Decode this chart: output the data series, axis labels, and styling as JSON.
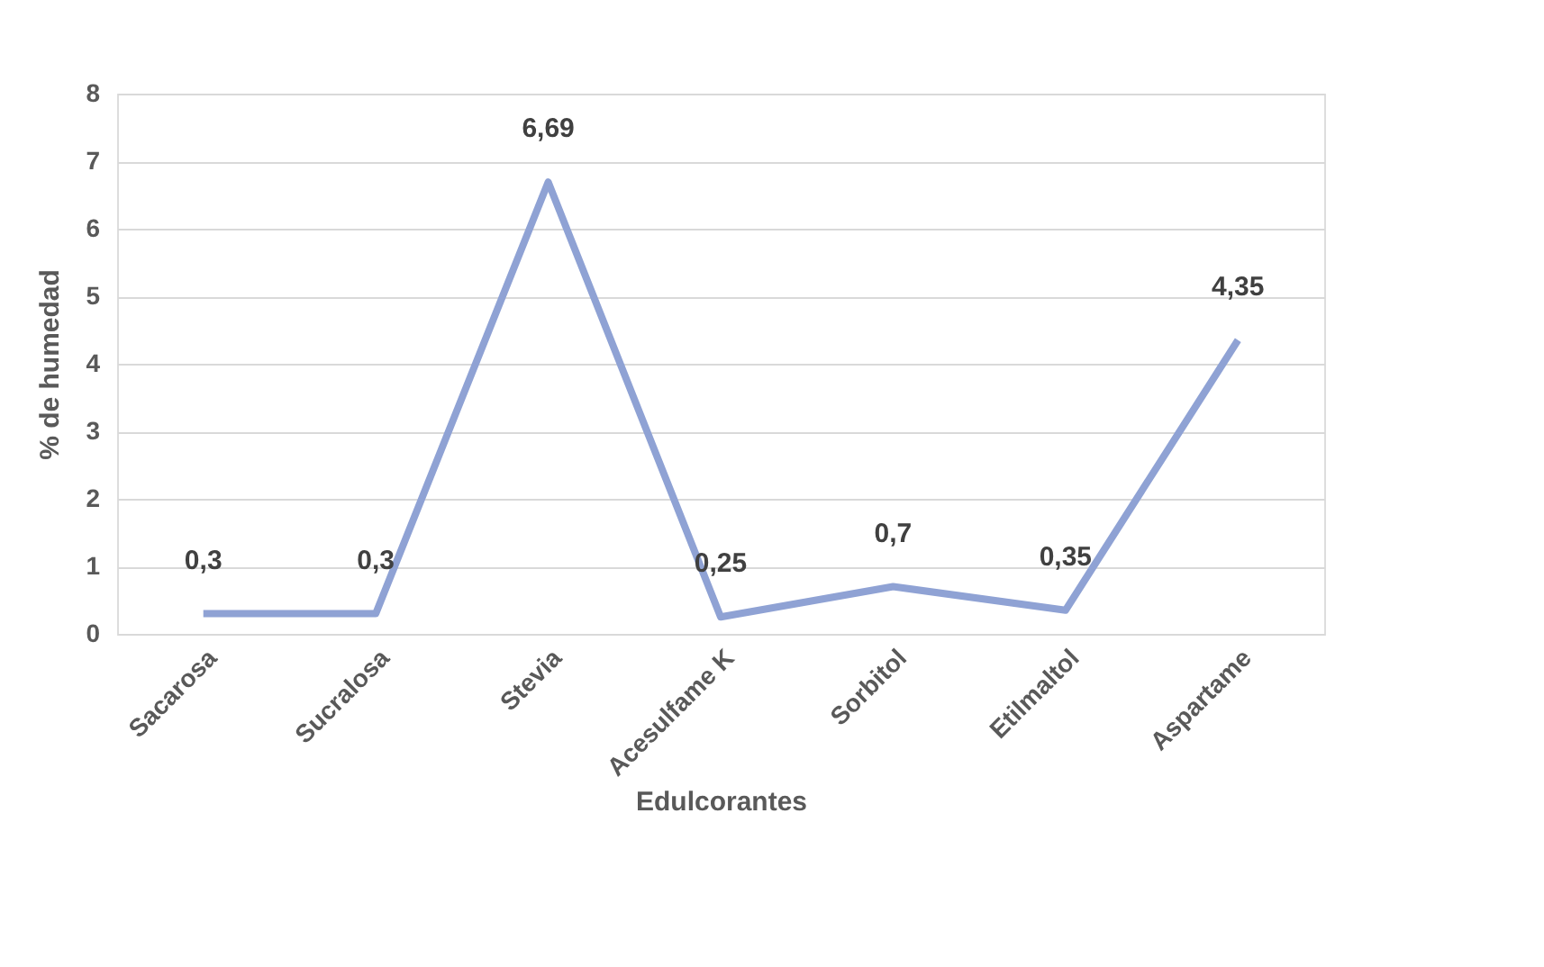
{
  "chart_data": {
    "type": "line",
    "xlabel": "Edulcorantes",
    "ylabel": "% de humedad",
    "categories": [
      "Sacarosa",
      "Sucralosa",
      "Stevia",
      "Acesulfame K",
      "Sorbitol",
      "Etilmaltol",
      "Aspartame"
    ],
    "series": [
      {
        "color": "#8fa2d4",
        "values": [
          0.3,
          0.3,
          6.69,
          0.25,
          0.7,
          0.35,
          4.35
        ],
        "value_labels": [
          "0,3",
          "0,3",
          "6,69",
          "0,25",
          "0,7",
          "0,35",
          "4,35"
        ]
      }
    ],
    "ylim": [
      0,
      8
    ],
    "yticks": [
      0,
      1,
      2,
      3,
      4,
      5,
      6,
      7,
      8
    ],
    "grid": "y",
    "marker": "none",
    "line_style": "solid"
  }
}
